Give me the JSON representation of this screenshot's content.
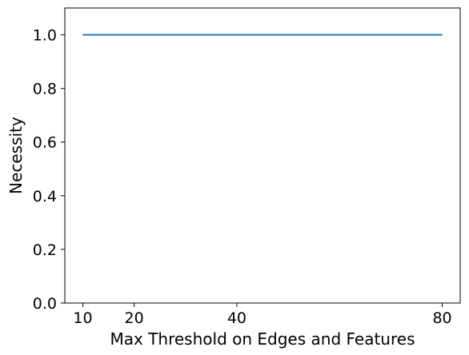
{
  "chart_data": {
    "type": "line",
    "title": "",
    "xlabel": "Max Threshold on Edges and Features",
    "ylabel": "Necessity",
    "xlim": [
      6.5,
      83.5
    ],
    "ylim": [
      0.0,
      1.1
    ],
    "xticks": [
      10,
      20,
      40,
      80
    ],
    "xtick_labels": [
      "10",
      "20",
      "40",
      "80"
    ],
    "yticks": [
      0.0,
      0.2,
      0.4,
      0.6,
      0.8,
      1.0
    ],
    "ytick_labels": [
      "0.0",
      "0.2",
      "0.4",
      "0.6",
      "0.8",
      "1.0"
    ],
    "grid": false,
    "series": [
      {
        "x": [
          10,
          20,
          40,
          80
        ],
        "y": [
          1.0,
          1.0,
          1.0,
          1.0
        ],
        "color": "#1f77b4"
      }
    ]
  }
}
